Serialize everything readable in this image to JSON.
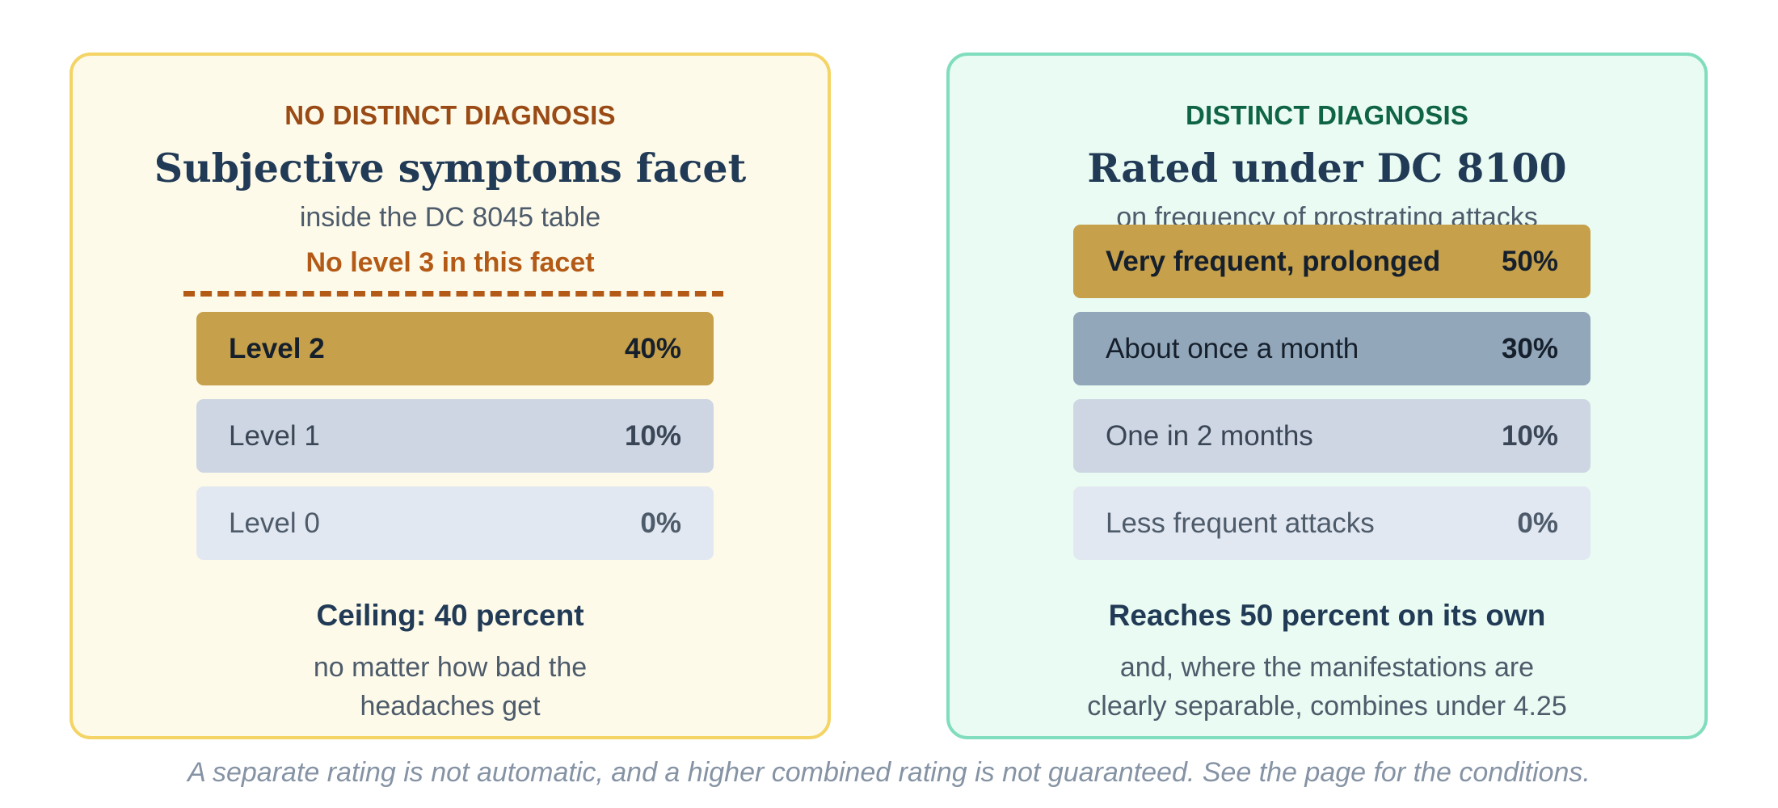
{
  "left_panel": {
    "kicker": "NO DISTINCT DIAGNOSIS",
    "headline": "Subjective symptoms facet",
    "subline": "inside the DC 8045 table",
    "note": "No level 3 in this facet",
    "levels": [
      {
        "label": "Level 2",
        "percent": "40%"
      },
      {
        "label": "Level 1",
        "percent": "10%"
      },
      {
        "label": "Level 0",
        "percent": "0%"
      }
    ],
    "summary_title": "Ceiling: 40 percent",
    "summary_line1": "no matter how bad the",
    "summary_line2": "headaches get"
  },
  "right_panel": {
    "kicker": "DISTINCT DIAGNOSIS",
    "headline": "Rated under DC 8100",
    "subline": "on frequency of prostrating attacks",
    "levels": [
      {
        "label": "Very frequent, prolonged",
        "percent": "50%"
      },
      {
        "label": "About once a month",
        "percent": "30%"
      },
      {
        "label": "One in 2 months",
        "percent": "10%"
      },
      {
        "label": "Less frequent attacks",
        "percent": "0%"
      }
    ],
    "summary_title": "Reaches 50 percent on its own",
    "summary_line1": "and, where the manifestations are",
    "summary_line2": "clearly separable, combines under 4.25"
  },
  "footnote": "A separate rating is not automatic, and a higher combined rating is not guaranteed. See the page for the conditions.",
  "colors": {
    "left_border": "#f4d465",
    "left_background": "#fdfaea",
    "right_border": "#80ddbd",
    "right_background": "#e9fbf2",
    "highlight_bar": "#c6a04a",
    "second_bar": "#93a7bb",
    "accent_orange": "#b45a17"
  }
}
